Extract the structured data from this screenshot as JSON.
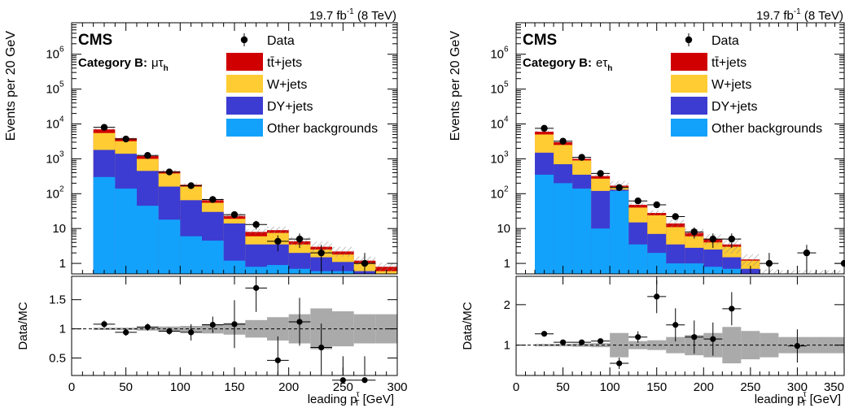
{
  "chart_data": [
    {
      "type": "bar",
      "title": "",
      "lumi_label": {
        "lumi": "19.7 fb",
        "sup": "-1",
        "energy": "(8 TeV)"
      },
      "experiment_label": "CMS",
      "category_label": {
        "prefix": "Category B:",
        "channel": "μτ",
        "channel_sub": "h"
      },
      "xlabel": {
        "prefix": "leading p",
        "sub": "T",
        "sup": "τ",
        "unit": "[GeV]"
      },
      "ylabel": "Events per 20 GeV",
      "ratio_ylabel": "Data/MC",
      "xlim": [
        0,
        300
      ],
      "ylim": [
        0.5,
        8000000
      ],
      "yscale": "log",
      "ratio_ylim": [
        0.2,
        1.9
      ],
      "xticks": [
        "0",
        "50",
        "100",
        "150",
        "200",
        "250",
        "300"
      ],
      "yticks": [
        "1",
        "10",
        "10",
        "10",
        "10",
        "10",
        "10"
      ],
      "yticks_sup": [
        "",
        "",
        "2",
        "3",
        "4",
        "5",
        "6"
      ],
      "ratio_yticks": [
        "0.5",
        "1",
        "1.5"
      ],
      "legend_position": "top-right",
      "legend": {
        "data": "Data",
        "ttbar": "tt̄+jets",
        "wjets": "W+jets",
        "dy": "DY+jets",
        "other": "Other backgrounds"
      },
      "colors": {
        "ttbar": "#d10000",
        "wjets": "#ffcc33",
        "dy": "#3c3cd2",
        "other": "#13a2fb",
        "band": "#aaaaaa"
      },
      "bin_edges": [
        20,
        40,
        60,
        80,
        100,
        120,
        140,
        160,
        180,
        200,
        220,
        240,
        260,
        280,
        300
      ],
      "stack": {
        "other": [
          300,
          140,
          45,
          18,
          6,
          4.5,
          1.2,
          0.8,
          0.9,
          0.7,
          0.6,
          0.6,
          0.3,
          0.2
        ],
        "dy": [
          1800,
          1400,
          450,
          160,
          65,
          30,
          14,
          3.5,
          3.5,
          2,
          1.5,
          1.1,
          0.6,
          0.4
        ],
        "wjets": [
          5500,
          3200,
          1000,
          380,
          160,
          55,
          19,
          6,
          7.5,
          3.5,
          2.5,
          1.8,
          1.0,
          0.6
        ],
        "ttbar": [
          7000,
          3900,
          1200,
          440,
          180,
          65,
          23,
          8,
          9,
          4.3,
          3,
          2.2,
          1.2,
          0.8
        ]
      },
      "data_points": [
        {
          "x": 30,
          "y": 8000
        },
        {
          "x": 50,
          "y": 3700
        },
        {
          "x": 70,
          "y": 1250
        },
        {
          "x": 90,
          "y": 420
        },
        {
          "x": 110,
          "y": 170
        },
        {
          "x": 130,
          "y": 68
        },
        {
          "x": 150,
          "y": 25
        },
        {
          "x": 170,
          "y": 13
        },
        {
          "x": 190,
          "y": 4.3
        },
        {
          "x": 210,
          "y": 5
        },
        {
          "x": 230,
          "y": 2
        },
        {
          "x": 270,
          "y": 1
        }
      ],
      "ratio_points": [
        {
          "x": 30,
          "y": 1.08
        },
        {
          "x": 50,
          "y": 0.94
        },
        {
          "x": 70,
          "y": 1.03
        },
        {
          "x": 90,
          "y": 0.96
        },
        {
          "x": 110,
          "y": 0.94
        },
        {
          "x": 130,
          "y": 1.07
        },
        {
          "x": 150,
          "y": 1.08
        },
        {
          "x": 170,
          "y": 1.7
        },
        {
          "x": 190,
          "y": 0.46
        },
        {
          "x": 210,
          "y": 1.12
        },
        {
          "x": 230,
          "y": 0.68
        },
        {
          "x": 250,
          "y": 0.12
        },
        {
          "x": 270,
          "y": 0.12
        }
      ],
      "ratio_band": [
        0.02,
        0.02,
        0.03,
        0.04,
        0.05,
        0.08,
        0.1,
        0.15,
        0.2,
        0.25,
        0.35,
        0.3,
        0.25,
        0.25
      ]
    },
    {
      "type": "bar",
      "title": "",
      "lumi_label": {
        "lumi": "19.7 fb",
        "sup": "-1",
        "energy": "(8 TeV)"
      },
      "experiment_label": "CMS",
      "category_label": {
        "prefix": "Category B:",
        "channel": "eτ",
        "channel_sub": "h"
      },
      "xlabel": {
        "prefix": "leading p",
        "sub": "T",
        "sup": "τ",
        "unit": "[GeV]"
      },
      "ylabel": "Events per 20 GeV",
      "ratio_ylabel": "Data/MC",
      "xlim": [
        0,
        350
      ],
      "ylim": [
        0.5,
        8000000
      ],
      "yscale": "log",
      "ratio_ylim": [
        0.25,
        2.7
      ],
      "xticks": [
        "0",
        "50",
        "100",
        "150",
        "200",
        "250",
        "300",
        "350"
      ],
      "yticks": [
        "1",
        "10",
        "10",
        "10",
        "10",
        "10",
        "10"
      ],
      "yticks_sup": [
        "",
        "",
        "2",
        "3",
        "4",
        "5",
        "6"
      ],
      "ratio_yticks": [
        "1",
        "2"
      ],
      "legend_position": "top-right",
      "legend": {
        "data": "Data",
        "ttbar": "tt̄+jets",
        "wjets": "W+jets",
        "dy": "DY+jets",
        "other": "Other backgrounds"
      },
      "colors": {
        "ttbar": "#d10000",
        "wjets": "#ffcc33",
        "dy": "#3c3cd2",
        "other": "#13a2fb",
        "band": "#aaaaaa"
      },
      "bin_edges": [
        20,
        40,
        60,
        80,
        100,
        120,
        140,
        160,
        180,
        200,
        220,
        240,
        260,
        280,
        300,
        320,
        340,
        350
      ],
      "stack": {
        "other": [
          350,
          200,
          140,
          10,
          120,
          3.5,
          2,
          1,
          1,
          0.8,
          0.7,
          0.5,
          0.5,
          0.5,
          0.5,
          0.5,
          0.5
        ],
        "dy": [
          1500,
          700,
          350,
          120,
          130,
          15,
          7,
          3.5,
          2.8,
          2.5,
          1.5,
          0.7,
          0.5,
          0.5,
          0.5,
          0.5,
          0.5
        ],
        "wjets": [
          5000,
          2500,
          900,
          270,
          155,
          40,
          24,
          11,
          6,
          4,
          3,
          1.2,
          0.5,
          0.5,
          0.5,
          0.5,
          0.5
        ],
        "ttbar": [
          6000,
          3000,
          1000,
          320,
          170,
          48,
          28,
          14,
          7.5,
          5,
          3.5,
          1.3,
          0.5,
          0.5,
          0.5,
          0.5,
          0.5
        ]
      },
      "data_points": [
        {
          "x": 30,
          "y": 7500
        },
        {
          "x": 50,
          "y": 3200
        },
        {
          "x": 70,
          "y": 1100
        },
        {
          "x": 90,
          "y": 380
        },
        {
          "x": 110,
          "y": 150
        },
        {
          "x": 130,
          "y": 62
        },
        {
          "x": 150,
          "y": 48
        },
        {
          "x": 170,
          "y": 22
        },
        {
          "x": 190,
          "y": 8
        },
        {
          "x": 210,
          "y": 5
        },
        {
          "x": 230,
          "y": 5
        },
        {
          "x": 270,
          "y": 1
        },
        {
          "x": 310,
          "y": 2
        },
        {
          "x": 350,
          "y": 1
        }
      ],
      "ratio_points": [
        {
          "x": 30,
          "y": 1.28
        },
        {
          "x": 50,
          "y": 1.07
        },
        {
          "x": 70,
          "y": 1.07
        },
        {
          "x": 90,
          "y": 1.1
        },
        {
          "x": 110,
          "y": 0.55
        },
        {
          "x": 130,
          "y": 1.2
        },
        {
          "x": 150,
          "y": 2.2
        },
        {
          "x": 170,
          "y": 1.5
        },
        {
          "x": 190,
          "y": 1.2
        },
        {
          "x": 210,
          "y": 1.15
        },
        {
          "x": 230,
          "y": 1.9
        },
        {
          "x": 300,
          "y": 0.98
        }
      ],
      "ratio_band": [
        0.03,
        0.03,
        0.04,
        0.05,
        0.3,
        0.1,
        0.12,
        0.2,
        0.25,
        0.3,
        0.45,
        0.35,
        0.3,
        0.2,
        0.2,
        0.2,
        0.2
      ]
    }
  ]
}
